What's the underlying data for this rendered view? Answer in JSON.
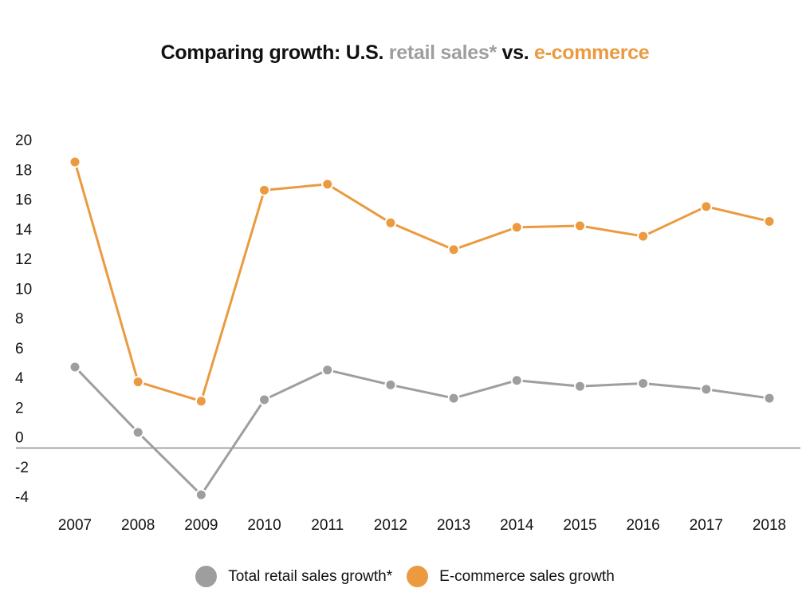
{
  "title": {
    "part1": "Comparing growth: U.S. ",
    "part2": "retail sales*",
    "part3": " vs. ",
    "part4": "e-commerce"
  },
  "colors": {
    "retail": "#9e9e9e",
    "ecommerce": "#eb9a3f",
    "title_text": "#111111",
    "zero_line": "#8a8a8a"
  },
  "chart_data": {
    "type": "line",
    "title": "Comparing growth: U.S. retail sales* vs. e-commerce",
    "x": [
      "2007",
      "2008",
      "2009",
      "2010",
      "2011",
      "2012",
      "2013",
      "2014",
      "2015",
      "2016",
      "2017",
      "2018"
    ],
    "series": [
      {
        "name": "Total retail sales growth*",
        "color": "#9e9e9e",
        "values": [
          4.7,
          0.3,
          -3.9,
          2.5,
          4.5,
          3.5,
          2.6,
          3.8,
          3.4,
          3.6,
          3.2,
          2.6
        ]
      },
      {
        "name": "E-commerce sales growth",
        "color": "#eb9a3f",
        "values": [
          18.5,
          3.7,
          2.4,
          16.6,
          17.0,
          14.4,
          12.6,
          14.1,
          14.2,
          13.5,
          15.5,
          14.5
        ]
      }
    ],
    "y_ticks": [
      "20",
      "18",
      "16",
      "14",
      "12",
      "10",
      "8",
      "6",
      "4",
      "2",
      "0",
      "-2",
      "-4"
    ],
    "ylim": [
      -4,
      20
    ],
    "grid": false,
    "zero_line": true,
    "legend_position": "bottom-center"
  },
  "legend": {
    "items": [
      {
        "label": "Total retail sales growth*",
        "color": "#9e9e9e"
      },
      {
        "label": "E-commerce sales growth",
        "color": "#eb9a3f"
      }
    ]
  }
}
